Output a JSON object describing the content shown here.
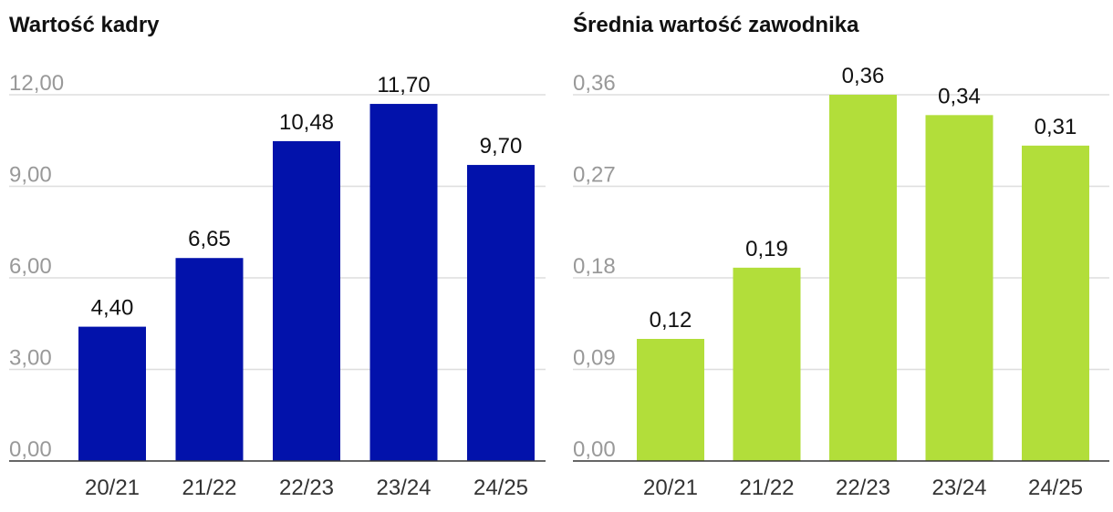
{
  "chart_data": [
    {
      "type": "bar",
      "title": "Wartość kadry",
      "categories": [
        "20/21",
        "21/22",
        "22/23",
        "23/24",
        "24/25"
      ],
      "values": [
        4.4,
        6.65,
        10.48,
        11.7,
        9.7
      ],
      "value_labels": [
        "4,40",
        "6,65",
        "10,48",
        "11,70",
        "9,70"
      ],
      "yticks": [
        "0,00",
        "3,00",
        "6,00",
        "9,00",
        "12,00"
      ],
      "ytick_values": [
        0,
        3,
        6,
        9,
        12
      ],
      "ylim": [
        0,
        12
      ],
      "xlabel": "",
      "ylabel": "",
      "grid": true,
      "color": "#0212AB"
    },
    {
      "type": "bar",
      "title": "Średnia wartość zawodnika",
      "categories": [
        "20/21",
        "21/22",
        "22/23",
        "23/24",
        "24/25"
      ],
      "values": [
        0.12,
        0.19,
        0.36,
        0.34,
        0.31
      ],
      "value_labels": [
        "0,12",
        "0,19",
        "0,36",
        "0,34",
        "0,31"
      ],
      "yticks": [
        "0,00",
        "0,09",
        "0,18",
        "0,27",
        "0,36"
      ],
      "ytick_values": [
        0,
        0.09,
        0.18,
        0.27,
        0.36
      ],
      "ylim": [
        0,
        0.36
      ],
      "xlabel": "",
      "ylabel": "",
      "grid": true,
      "color": "#B2DE3A"
    }
  ]
}
